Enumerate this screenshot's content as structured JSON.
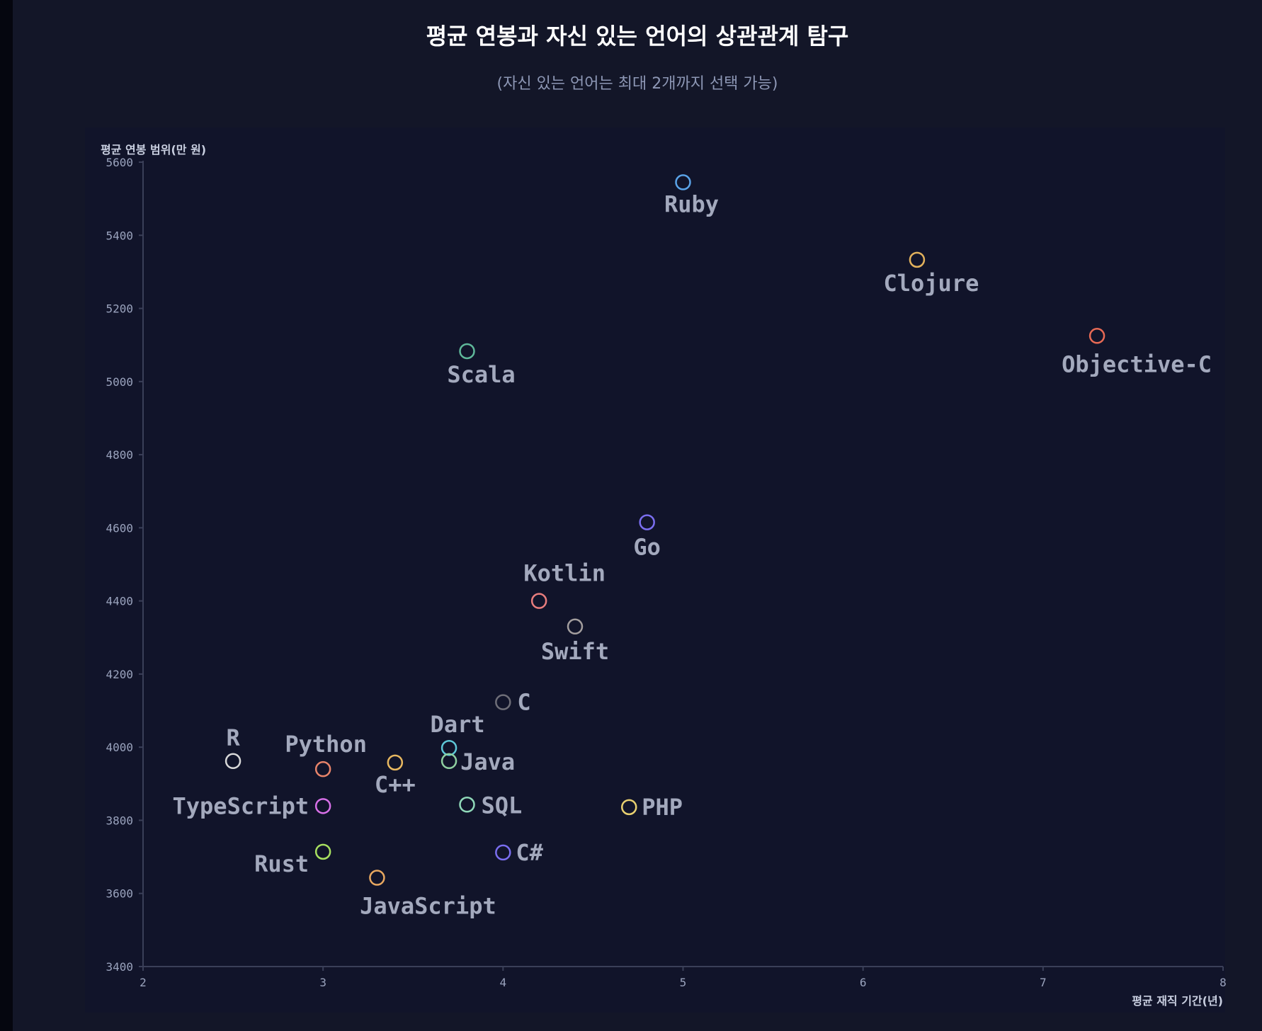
{
  "title": "평균 연봉과 자신 있는 언어의 상관관계 탐구",
  "subtitle": "(자신 있는 언어는 최대 2개까지 선택 가능)",
  "chart_data": {
    "type": "scatter",
    "title": "평균 연봉과 자신 있는 언어의 상관관계 탐구",
    "subtitle": "(자신 있는 언어는 최대 2개까지 선택 가능)",
    "xlabel": "평균 재직 기간(년)",
    "ylabel": "평균 연봉 범위(만 원)",
    "xlim": [
      2,
      8
    ],
    "ylim": [
      3400,
      5600
    ],
    "xticks": [
      "2",
      "3",
      "4",
      "5",
      "6",
      "7",
      "8"
    ],
    "yticks": [
      "3400",
      "3600",
      "3800",
      "4000",
      "4200",
      "4400",
      "4600",
      "4800",
      "5000",
      "5200",
      "5400",
      "5600"
    ],
    "grid": false,
    "points": [
      {
        "label": "Ruby",
        "x": 5.0,
        "y": 5545,
        "color": "#5aa3e8"
      },
      {
        "label": "Clojure",
        "x": 6.3,
        "y": 5333,
        "color": "#e3b25c"
      },
      {
        "label": "Objective-C",
        "x": 7.3,
        "y": 5125,
        "color": "#e86a55"
      },
      {
        "label": "Scala",
        "x": 3.8,
        "y": 5083,
        "color": "#5fb89a"
      },
      {
        "label": "Go",
        "x": 4.8,
        "y": 4615,
        "color": "#7a6ef0"
      },
      {
        "label": "Kotlin",
        "x": 4.2,
        "y": 4400,
        "color": "#e87d7d"
      },
      {
        "label": "Swift",
        "x": 4.4,
        "y": 4330,
        "color": "#a39e9e"
      },
      {
        "label": "C",
        "x": 4.0,
        "y": 4123,
        "color": "#6e6e78"
      },
      {
        "label": "Dart",
        "x": 3.7,
        "y": 3998,
        "color": "#5ec8d8"
      },
      {
        "label": "R",
        "x": 2.5,
        "y": 3962,
        "color": "#d8d8d8"
      },
      {
        "label": "Java",
        "x": 3.7,
        "y": 3962,
        "color": "#8fd0a0"
      },
      {
        "label": "C++",
        "x": 3.4,
        "y": 3958,
        "color": "#e8b860"
      },
      {
        "label": "Python",
        "x": 3.0,
        "y": 3940,
        "color": "#e8846a"
      },
      {
        "label": "SQL",
        "x": 3.8,
        "y": 3843,
        "color": "#8fd8b8"
      },
      {
        "label": "PHP",
        "x": 4.7,
        "y": 3836,
        "color": "#e8d070"
      },
      {
        "label": "TypeScript",
        "x": 3.0,
        "y": 3839,
        "color": "#d870e8"
      },
      {
        "label": "Rust",
        "x": 3.0,
        "y": 3714,
        "color": "#a8e060"
      },
      {
        "label": "C#",
        "x": 4.0,
        "y": 3712,
        "color": "#7a6ef0"
      },
      {
        "label": "JavaScript",
        "x": 3.3,
        "y": 3643,
        "color": "#e8a860"
      }
    ]
  }
}
